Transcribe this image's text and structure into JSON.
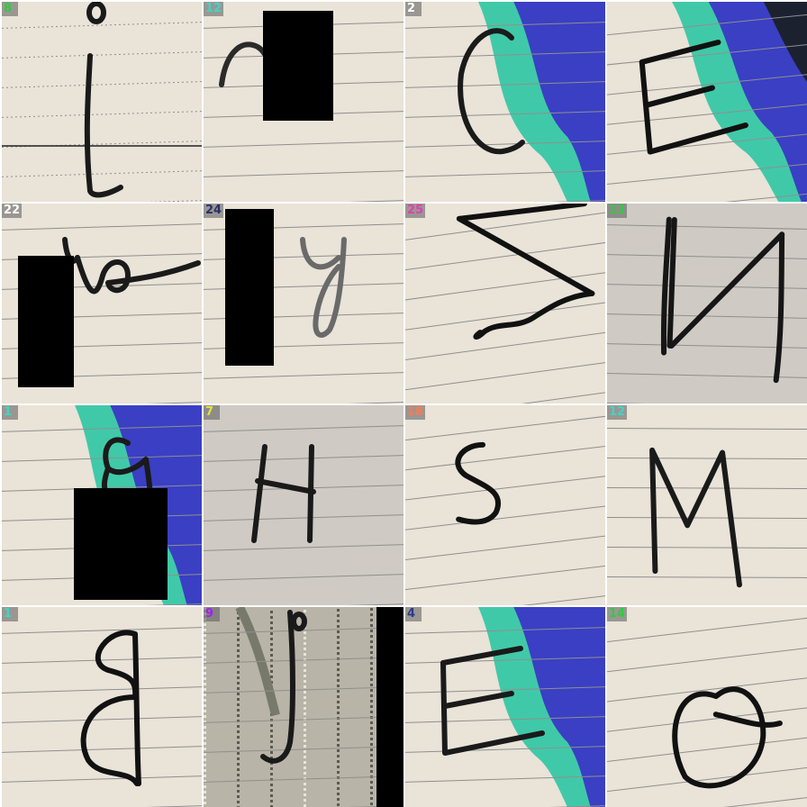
{
  "title": "",
  "tiles": [
    {
      "label": "8",
      "label_color": "#2ecc40",
      "letter": "i",
      "bg": "paper_plain",
      "occluder": false,
      "tilt": 0,
      "ink": "#1a1a1a"
    },
    {
      "label": "12",
      "label_color": "#3dd6c8",
      "letter": "n",
      "bg": "paper_plain",
      "occluder": true,
      "tilt": 0,
      "ink": "#2a2a2a"
    },
    {
      "label": "2",
      "label_color": "#ffffff",
      "letter": "C",
      "bg": "paper_blue",
      "occluder": false,
      "tilt": 0,
      "ink": "#1a1a1a"
    },
    {
      "label": "",
      "label_color": "#2a3a8a",
      "letter": "E",
      "bg": "paper_blue",
      "occluder": false,
      "tilt": -4,
      "ink": "#111111"
    },
    {
      "label": "22",
      "label_color": "#ffffff",
      "letter": "w",
      "bg": "paper_plain",
      "occluder": true,
      "tilt": 0,
      "ink": "#1a1a1a"
    },
    {
      "label": "24",
      "label_color": "#2a2f6a",
      "letter": "y",
      "bg": "paper_plain",
      "occluder": true,
      "tilt": 0,
      "ink": "#6a6a6a"
    },
    {
      "label": "25",
      "label_color": "#e040b0",
      "letter": "Z",
      "bg": "paper_plain",
      "occluder": false,
      "tilt": -6,
      "ink": "#111111"
    },
    {
      "label": "13",
      "label_color": "#2ecc40",
      "letter": "N",
      "bg": "paper_gray",
      "occluder": false,
      "tilt": 3,
      "ink": "#161616"
    },
    {
      "label": "1",
      "label_color": "#3dd6c8",
      "letter": "g",
      "bg": "paper_blue",
      "occluder": true,
      "tilt": 0,
      "ink": "#1a1a1a"
    },
    {
      "label": "7",
      "label_color": "#e6e040",
      "letter": "H",
      "bg": "paper_gray",
      "occluder": false,
      "tilt": 0,
      "ink": "#1a1a1a"
    },
    {
      "label": "18",
      "label_color": "#ff7a50",
      "letter": "S",
      "bg": "paper_plain",
      "occluder": false,
      "tilt": -5,
      "ink": "#111111"
    },
    {
      "label": "12",
      "label_color": "#3dd6c8",
      "letter": "M",
      "bg": "paper_plain",
      "occluder": false,
      "tilt": 2,
      "ink": "#1a1a1a"
    },
    {
      "label": "1",
      "label_color": "#3dd6c8",
      "letter": "B",
      "bg": "paper_plain",
      "occluder": false,
      "tilt": 0,
      "ink": "#111111"
    },
    {
      "label": "9",
      "label_color": "#a020f0",
      "letter": "J",
      "bg": "paper_noise",
      "occluder": false,
      "tilt": 0,
      "ink": "#1a1a1a"
    },
    {
      "label": "4",
      "label_color": "#2a3a8a",
      "letter": "E",
      "bg": "paper_blue",
      "occluder": false,
      "tilt": 0,
      "ink": "#1a1a1a"
    },
    {
      "label": "14",
      "label_color": "#2ecc40",
      "letter": "O",
      "bg": "paper_plain",
      "occluder": false,
      "tilt": -5,
      "ink": "#111111"
    }
  ],
  "palette": {
    "paper": "#e9e3d8",
    "paper_gray": "#cfcac4",
    "line": "#8f8f8f",
    "blue": "#3a3fc4",
    "teal": "#40c9a8",
    "dark": "#1c2130"
  }
}
